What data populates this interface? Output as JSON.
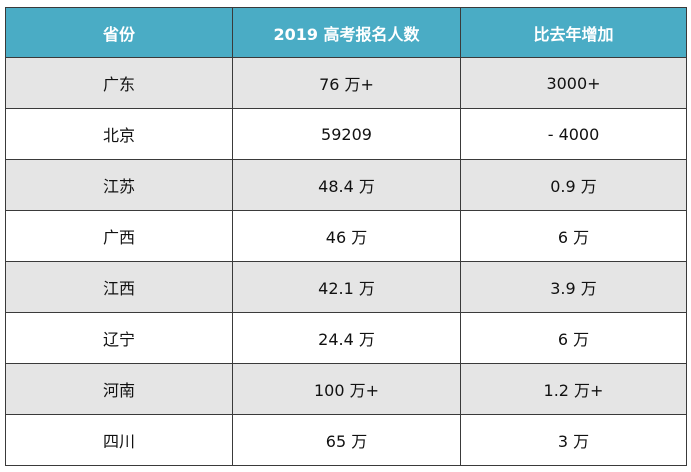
{
  "table": {
    "headers": [
      "省份",
      "2019 高考报名人数",
      "比去年增加"
    ],
    "rows": [
      [
        "广东",
        "76 万+",
        "3000+"
      ],
      [
        "北京",
        "59209",
        "- 4000"
      ],
      [
        "江苏",
        "48.4 万",
        "0.9 万"
      ],
      [
        "广西",
        "46 万",
        "6 万"
      ],
      [
        "江西",
        "42.1 万",
        "3.9 万"
      ],
      [
        "辽宁",
        "24.4 万",
        "6 万"
      ],
      [
        "河南",
        "100 万+",
        "1.2 万+"
      ],
      [
        "四川",
        "65 万",
        "3 万"
      ]
    ]
  },
  "colors": {
    "header_bg": "#4aacc5",
    "header_text": "#ffffff",
    "stripe_bg": "#e5e5e5",
    "row_bg": "#ffffff",
    "border": "#3a3a3a"
  }
}
